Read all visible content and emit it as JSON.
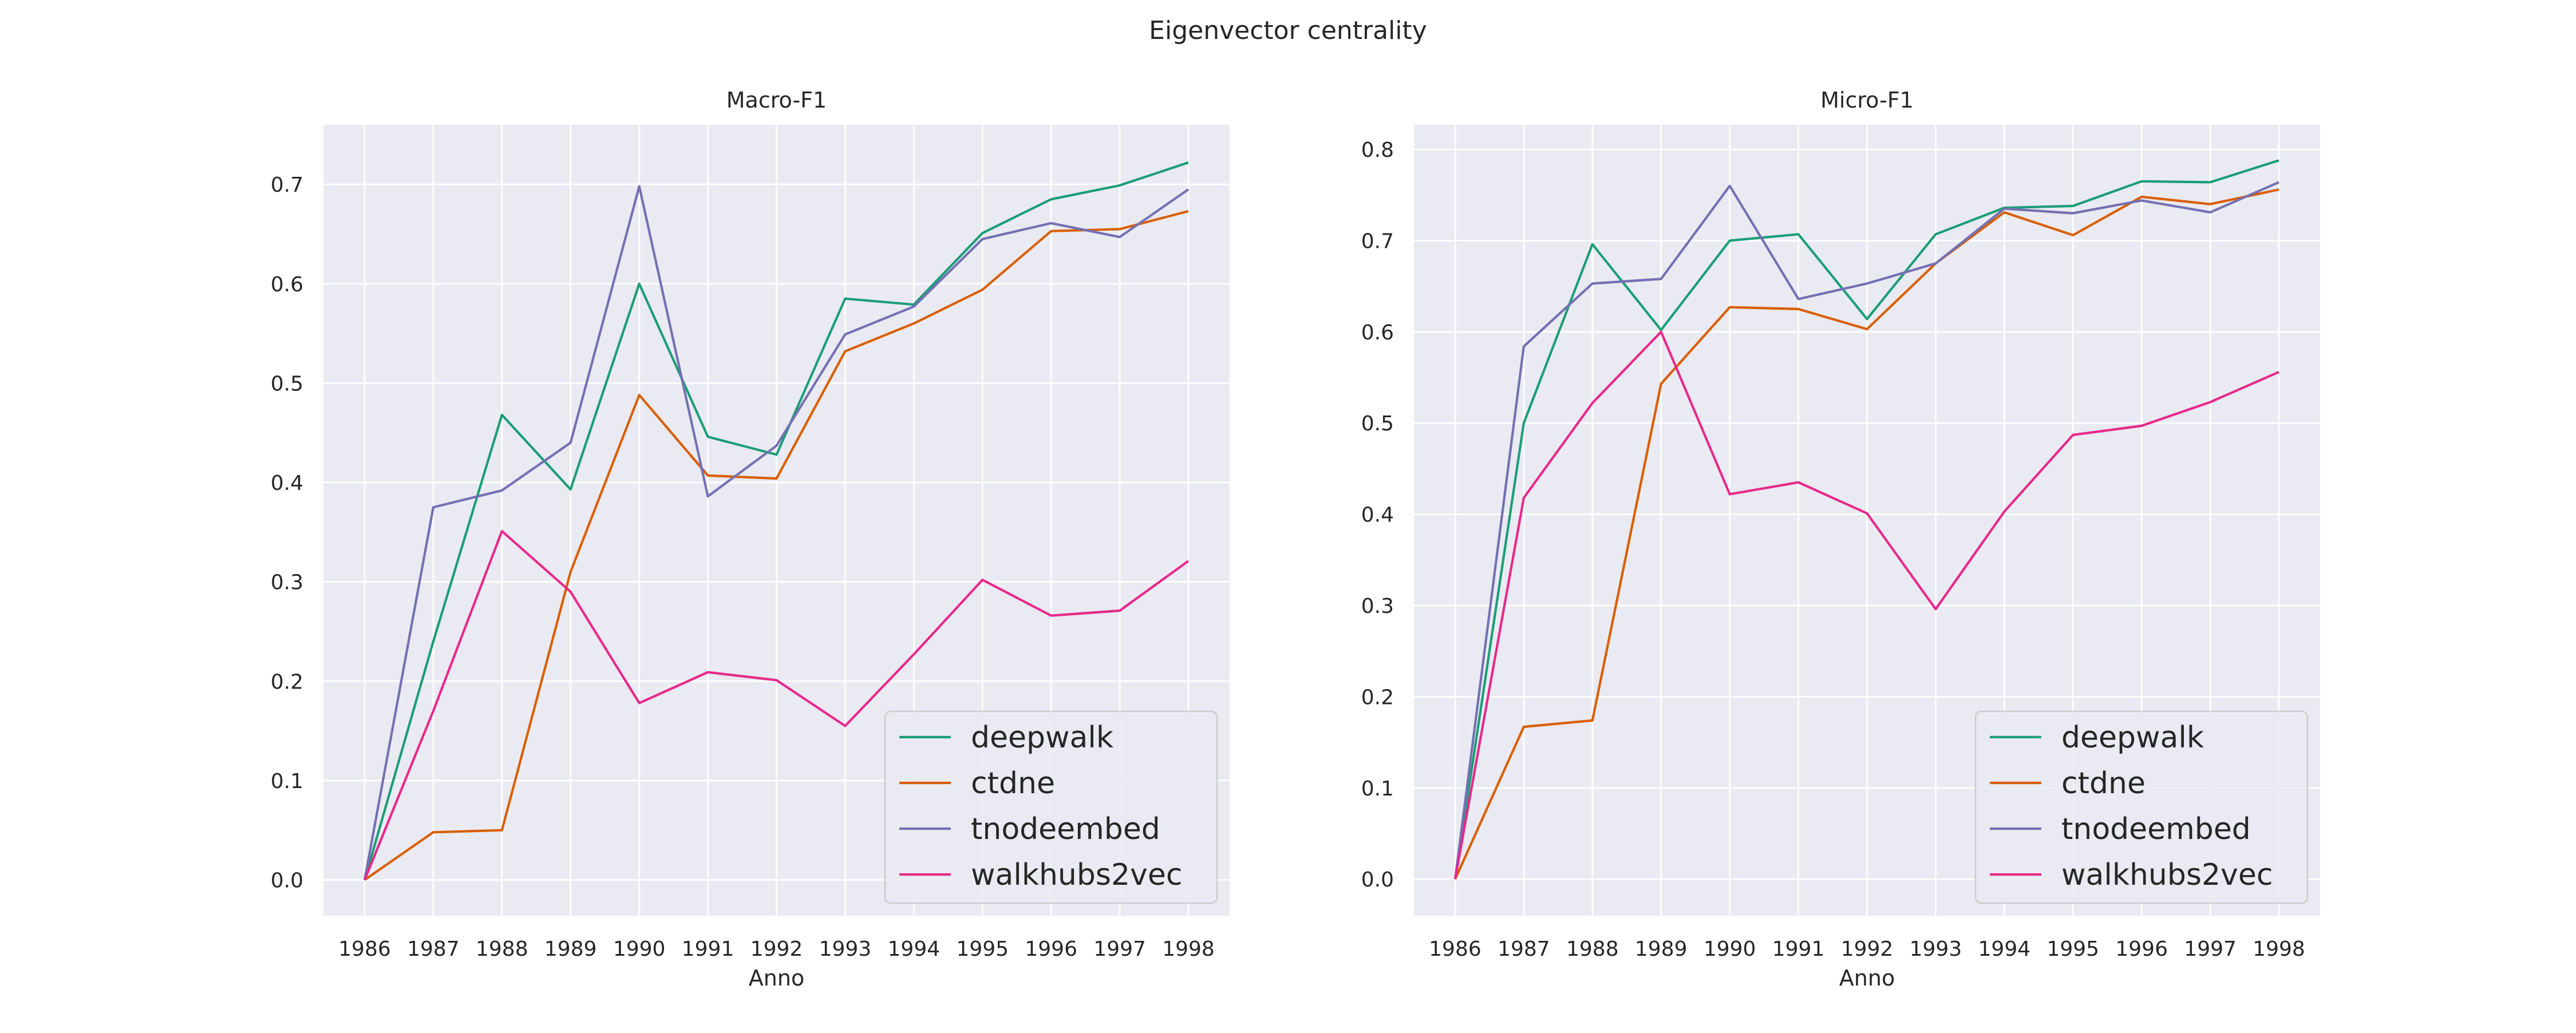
{
  "figure": {
    "suptitle": "Eigenvector centrality"
  },
  "colors": {
    "background": "#eaeaf2",
    "grid": "#ffffff",
    "deepwalk": "#1b9e77",
    "ctdne": "#d95f02",
    "tnodeembed": "#7570b3",
    "walkhubs2vec": "#e7298a"
  },
  "chart_data": [
    {
      "type": "line",
      "title": "Macro-F1",
      "xlabel": "Anno",
      "ylabel": "",
      "x": [
        1986,
        1987,
        1988,
        1989,
        1990,
        1991,
        1992,
        1993,
        1994,
        1995,
        1996,
        1997,
        1998
      ],
      "xlim": [
        1985.4,
        1998.6
      ],
      "ylim": [
        -0.036,
        0.76
      ],
      "yticks": [
        0.0,
        0.1,
        0.2,
        0.3,
        0.4,
        0.5,
        0.6,
        0.7
      ],
      "ytick_labels": [
        "0.0",
        "0.1",
        "0.2",
        "0.3",
        "0.4",
        "0.5",
        "0.6",
        "0.7"
      ],
      "grid": true,
      "legend": "lower-right",
      "series": [
        {
          "name": "deepwalk",
          "values": [
            0.0,
            0.24,
            0.468,
            0.393,
            0.6,
            0.446,
            0.428,
            0.585,
            0.579,
            0.651,
            0.685,
            0.699,
            0.722
          ]
        },
        {
          "name": "ctdne",
          "values": [
            0.0,
            0.048,
            0.05,
            0.31,
            0.488,
            0.407,
            0.404,
            0.532,
            0.56,
            0.594,
            0.653,
            0.655,
            0.673
          ]
        },
        {
          "name": "tnodeembed",
          "values": [
            0.0,
            0.375,
            0.392,
            0.44,
            0.698,
            0.386,
            0.437,
            0.549,
            0.577,
            0.645,
            0.661,
            0.647,
            0.695
          ]
        },
        {
          "name": "walkhubs2vec",
          "values": [
            0.0,
            0.17,
            0.351,
            0.29,
            0.178,
            0.209,
            0.201,
            0.155,
            0.227,
            0.302,
            0.266,
            0.271,
            0.321
          ]
        }
      ]
    },
    {
      "type": "line",
      "title": "Micro-F1",
      "xlabel": "Anno",
      "ylabel": "",
      "x": [
        1986,
        1987,
        1988,
        1989,
        1990,
        1991,
        1992,
        1993,
        1994,
        1995,
        1996,
        1997,
        1998
      ],
      "xlim": [
        1985.4,
        1998.6
      ],
      "ylim": [
        -0.04,
        0.827
      ],
      "yticks": [
        0.0,
        0.1,
        0.2,
        0.3,
        0.4,
        0.5,
        0.6,
        0.7,
        0.8
      ],
      "ytick_labels": [
        "0.0",
        "0.1",
        "0.2",
        "0.3",
        "0.4",
        "0.5",
        "0.6",
        "0.7",
        "0.8"
      ],
      "grid": true,
      "legend": "lower-right",
      "series": [
        {
          "name": "deepwalk",
          "values": [
            0.0,
            0.5,
            0.696,
            0.602,
            0.7,
            0.707,
            0.614,
            0.707,
            0.736,
            0.738,
            0.765,
            0.764,
            0.788
          ]
        },
        {
          "name": "ctdne",
          "values": [
            0.0,
            0.167,
            0.174,
            0.543,
            0.627,
            0.625,
            0.603,
            0.675,
            0.731,
            0.706,
            0.748,
            0.74,
            0.756
          ]
        },
        {
          "name": "tnodeembed",
          "values": [
            0.0,
            0.584,
            0.653,
            0.658,
            0.76,
            0.636,
            0.653,
            0.675,
            0.735,
            0.73,
            0.744,
            0.731,
            0.764
          ]
        },
        {
          "name": "walkhubs2vec",
          "values": [
            0.0,
            0.418,
            0.522,
            0.6,
            0.422,
            0.435,
            0.401,
            0.296,
            0.403,
            0.487,
            0.497,
            0.523,
            0.556
          ]
        }
      ]
    }
  ]
}
